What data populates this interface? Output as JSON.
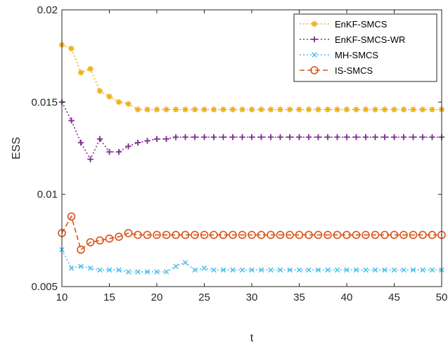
{
  "chart_data": {
    "type": "line",
    "title": "",
    "xlabel": "t",
    "ylabel": "ESS",
    "xlim": [
      10,
      50
    ],
    "ylim": [
      0.005,
      0.02
    ],
    "xticks": [
      10,
      15,
      20,
      25,
      30,
      35,
      40,
      45,
      50
    ],
    "xtick_labels": [
      "10",
      "15",
      "20",
      "25",
      "30",
      "35",
      "40",
      "45",
      "50"
    ],
    "yticks": [
      0.005,
      0.01,
      0.015,
      0.02
    ],
    "ytick_labels": [
      "0.005",
      "0.01",
      "0.015",
      "0.02"
    ],
    "grid": false,
    "legend_position": "top-right",
    "x": [
      10,
      11,
      12,
      13,
      14,
      15,
      16,
      17,
      18,
      19,
      20,
      21,
      22,
      23,
      24,
      25,
      26,
      27,
      28,
      29,
      30,
      31,
      32,
      33,
      34,
      35,
      36,
      37,
      38,
      39,
      40,
      41,
      42,
      43,
      44,
      45,
      46,
      47,
      48,
      49,
      50
    ],
    "series": [
      {
        "name": "EnKF-SMCS",
        "color": "#EDB120",
        "marker": "asterisk",
        "line_style": "dotted",
        "values": [
          0.0181,
          0.0179,
          0.0166,
          0.0168,
          0.0156,
          0.0153,
          0.015,
          0.0149,
          0.0146,
          0.0146,
          0.0146,
          0.0146,
          0.0146,
          0.0146,
          0.0146,
          0.0146,
          0.0146,
          0.0146,
          0.0146,
          0.0146,
          0.0146,
          0.0146,
          0.0146,
          0.0146,
          0.0146,
          0.0146,
          0.0146,
          0.0146,
          0.0146,
          0.0146,
          0.0146,
          0.0146,
          0.0146,
          0.0146,
          0.0146,
          0.0146,
          0.0146,
          0.0146,
          0.0146,
          0.0146,
          0.0146
        ]
      },
      {
        "name": "EnKF-SMCS-WR",
        "color": "#7E2F8E",
        "marker": "plus",
        "line_style": "dotted",
        "values": [
          0.015,
          0.014,
          0.0128,
          0.0119,
          0.013,
          0.0123,
          0.0123,
          0.0126,
          0.0128,
          0.0129,
          0.013,
          0.013,
          0.0131,
          0.0131,
          0.0131,
          0.0131,
          0.0131,
          0.0131,
          0.0131,
          0.0131,
          0.0131,
          0.0131,
          0.0131,
          0.0131,
          0.0131,
          0.0131,
          0.0131,
          0.0131,
          0.0131,
          0.0131,
          0.0131,
          0.0131,
          0.0131,
          0.0131,
          0.0131,
          0.0131,
          0.0131,
          0.0131,
          0.0131,
          0.0131,
          0.0131
        ]
      },
      {
        "name": "MH-SMCS",
        "color": "#4DBEEE",
        "marker": "cross",
        "line_style": "dotted",
        "values": [
          0.007,
          0.006,
          0.0061,
          0.006,
          0.0059,
          0.0059,
          0.0059,
          0.0058,
          0.0058,
          0.0058,
          0.0058,
          0.0058,
          0.0061,
          0.0063,
          0.0059,
          0.006,
          0.0059,
          0.0059,
          0.0059,
          0.0059,
          0.0059,
          0.0059,
          0.0059,
          0.0059,
          0.0059,
          0.0059,
          0.0059,
          0.0059,
          0.0059,
          0.0059,
          0.0059,
          0.0059,
          0.0059,
          0.0059,
          0.0059,
          0.0059,
          0.0059,
          0.0059,
          0.0059,
          0.0059,
          0.0059
        ]
      },
      {
        "name": "IS-SMCS",
        "color": "#D95319",
        "marker": "circle",
        "line_style": "dashed",
        "values": [
          0.0079,
          0.0088,
          0.007,
          0.0074,
          0.0075,
          0.0076,
          0.0077,
          0.0079,
          0.0078,
          0.0078,
          0.0078,
          0.0078,
          0.0078,
          0.0078,
          0.0078,
          0.0078,
          0.0078,
          0.0078,
          0.0078,
          0.0078,
          0.0078,
          0.0078,
          0.0078,
          0.0078,
          0.0078,
          0.0078,
          0.0078,
          0.0078,
          0.0078,
          0.0078,
          0.0078,
          0.0078,
          0.0078,
          0.0078,
          0.0078,
          0.0078,
          0.0078,
          0.0078,
          0.0078,
          0.0078,
          0.0078
        ]
      }
    ]
  }
}
